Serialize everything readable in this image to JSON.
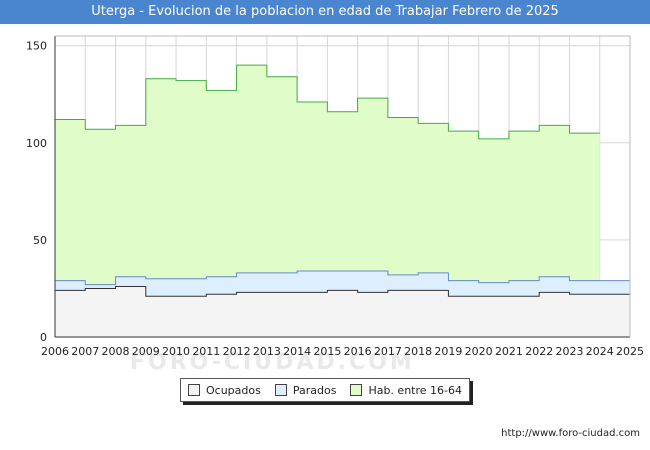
{
  "chart_data": {
    "type": "area",
    "title": "Uterga - Evolucion de la poblacion en edad de Trabajar Febrero de 2025",
    "xlabel": "",
    "ylabel": "",
    "x_ticks": [
      "2006",
      "2007",
      "2008",
      "2009",
      "2010",
      "2011",
      "2012",
      "2013",
      "2014",
      "2015",
      "2016",
      "2017",
      "2018",
      "2019",
      "2020",
      "2021",
      "2022",
      "2023",
      "2024",
      "2025"
    ],
    "ylim": [
      0,
      155
    ],
    "y_ticks": [
      0,
      50,
      100,
      150
    ],
    "grid": true,
    "legend_position": "bottom",
    "series": [
      {
        "name": "Hab. entre 16-64",
        "color": "#e0fcc8",
        "line_color": "#44aa44",
        "x": [
          2006,
          2007,
          2008,
          2009,
          2010,
          2011,
          2012,
          2013,
          2014,
          2015,
          2016,
          2017,
          2018,
          2019,
          2020,
          2021,
          2022,
          2023
        ],
        "values": [
          112,
          107,
          109,
          133,
          132,
          127,
          140,
          134,
          121,
          116,
          123,
          113,
          110,
          106,
          102,
          106,
          109,
          105
        ]
      },
      {
        "name": "Parados",
        "color": "#ddeeff",
        "line_color": "#6688cc",
        "x": [
          2006,
          2007,
          2008,
          2009,
          2010,
          2011,
          2012,
          2013,
          2014,
          2015,
          2016,
          2017,
          2018,
          2019,
          2020,
          2021,
          2022,
          2023,
          2024
        ],
        "values": [
          29,
          27,
          31,
          30,
          30,
          31,
          33,
          33,
          34,
          34,
          34,
          32,
          33,
          29,
          28,
          29,
          31,
          29,
          29
        ]
      },
      {
        "name": "Ocupados",
        "color": "#f4f4f4",
        "line_color": "#333333",
        "x": [
          2006,
          2007,
          2008,
          2009,
          2010,
          2011,
          2012,
          2013,
          2014,
          2015,
          2016,
          2017,
          2018,
          2019,
          2020,
          2021,
          2022,
          2023,
          2024
        ],
        "values": [
          24,
          25,
          26,
          21,
          21,
          22,
          23,
          23,
          23,
          24,
          23,
          24,
          24,
          21,
          21,
          21,
          23,
          22,
          22
        ]
      }
    ]
  },
  "legend": {
    "ocupados": "Ocupados",
    "parados": "Parados",
    "hab": "Hab. entre 16-64"
  },
  "source": "http://www.foro-ciudad.com",
  "watermark": "FORO-CIUDAD.COM"
}
